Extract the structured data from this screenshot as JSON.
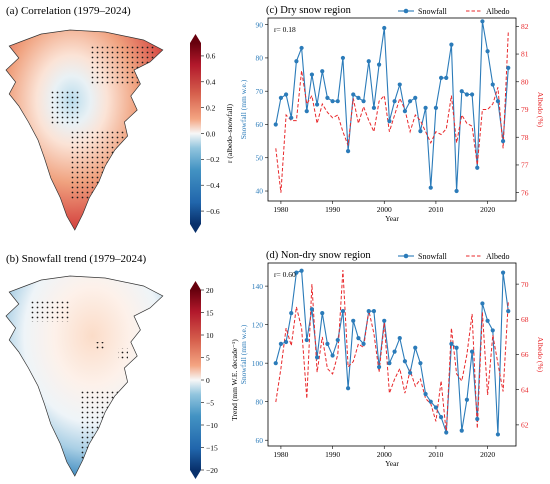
{
  "panels": {
    "a": {
      "title": "(a) Correlation (1979–2024)",
      "colorbar": {
        "label": "r (albedo–snowfall)",
        "min": -0.7,
        "max": 0.7,
        "ticks": [
          {
            "v": 0.6,
            "t": "0.6"
          },
          {
            "v": 0.4,
            "t": "0.4"
          },
          {
            "v": 0.2,
            "t": "0.2"
          },
          {
            "v": 0.0,
            "t": "0.0"
          },
          {
            "v": -0.2,
            "t": "−0.2"
          },
          {
            "v": -0.4,
            "t": "−0.4"
          },
          {
            "v": -0.6,
            "t": "−0.6"
          }
        ]
      }
    },
    "b": {
      "title": "(b) Snowfall trend (1979–2024)",
      "colorbar": {
        "label": "Trend (mm W.E. decade⁻¹)",
        "min": -20,
        "max": 20,
        "ticks": [
          {
            "v": 20,
            "t": "20"
          },
          {
            "v": 15,
            "t": "15"
          },
          {
            "v": 10,
            "t": "10"
          },
          {
            "v": 5,
            "t": "5"
          },
          {
            "v": 0,
            "t": "0"
          },
          {
            "v": -5,
            "t": "−5"
          },
          {
            "v": -10,
            "t": "−10"
          },
          {
            "v": -15,
            "t": "−15"
          },
          {
            "v": -20,
            "t": "−20"
          }
        ]
      }
    }
  },
  "colors": {
    "snowfall": "#2b7bb9",
    "albedo": "#e8282b",
    "cmap_neg": "#08306b",
    "cmap_pos": "#67000d",
    "land": "#ffffff"
  },
  "chart_data": [
    {
      "id": "c",
      "type": "line",
      "title": "(c) Dry snow region",
      "annotation": "r= 0.18",
      "xlabel": "Year",
      "ylabel": "Snowfall (mm w.e.)",
      "y2label": "Albedo (%)",
      "xlim": [
        1977.5,
        2025.5
      ],
      "ylim": [
        37,
        92
      ],
      "y2lim": [
        75.7,
        82.3
      ],
      "xticks": [
        1980,
        1990,
        2000,
        2010,
        2020
      ],
      "yticks": [
        40,
        50,
        60,
        70,
        80,
        90
      ],
      "y2ticks": [
        76,
        77,
        78,
        79,
        80,
        81,
        82
      ],
      "legend": "top-right",
      "x": [
        1979,
        1980,
        1981,
        1982,
        1983,
        1984,
        1985,
        1986,
        1987,
        1988,
        1989,
        1990,
        1991,
        1992,
        1993,
        1994,
        1995,
        1996,
        1997,
        1998,
        1999,
        2000,
        2001,
        2002,
        2003,
        2004,
        2005,
        2006,
        2007,
        2008,
        2009,
        2010,
        2011,
        2012,
        2013,
        2014,
        2015,
        2016,
        2017,
        2018,
        2019,
        2020,
        2021,
        2022,
        2023,
        2024
      ],
      "series": [
        {
          "name": "Snowfall",
          "axis": "left",
          "values": [
            60,
            68,
            69,
            62,
            79,
            83,
            64,
            75,
            66,
            76,
            68,
            67,
            67,
            80,
            52,
            69,
            68,
            67,
            79,
            65,
            78,
            89,
            61,
            67,
            72,
            64,
            67,
            68,
            58,
            65,
            41,
            65,
            74,
            74,
            84,
            40,
            70,
            69,
            69,
            47,
            91,
            82,
            72,
            67,
            55,
            77
          ]
        },
        {
          "name": "Albedo",
          "axis": "right",
          "values": [
            77.6,
            76.0,
            78.8,
            78.6,
            78.6,
            80.4,
            79.2,
            79.5,
            78.5,
            79.2,
            78.9,
            78.7,
            78.8,
            78.2,
            77.7,
            79.4,
            78.5,
            79.1,
            78.6,
            78.2,
            79.3,
            79.5,
            78.2,
            78.8,
            79.4,
            79.0,
            78.2,
            78.8,
            78.6,
            78.2,
            77.8,
            78.2,
            78.1,
            78.3,
            79.5,
            77.8,
            78.8,
            78.5,
            78.4,
            77.0,
            79.0,
            79.0,
            79.2,
            79.8,
            77.6,
            81.8
          ]
        }
      ]
    },
    {
      "id": "d",
      "type": "line",
      "title": "(d) Non-dry snow region",
      "annotation": "r= 0.60",
      "xlabel": "Year",
      "ylabel": "Snowfall (mm w.e.)",
      "y2label": "Albedo (%)",
      "xlim": [
        1977.5,
        2025.5
      ],
      "ylim": [
        57,
        152
      ],
      "y2lim": [
        60.8,
        71.2
      ],
      "xticks": [
        1980,
        1990,
        2000,
        2010,
        2020
      ],
      "yticks": [
        60,
        80,
        100,
        120,
        140
      ],
      "y2ticks": [
        62,
        64,
        66,
        68,
        70
      ],
      "legend": "top-right",
      "x": [
        1979,
        1980,
        1981,
        1982,
        1983,
        1984,
        1985,
        1986,
        1987,
        1988,
        1989,
        1990,
        1991,
        1992,
        1993,
        1994,
        1995,
        1996,
        1997,
        1998,
        1999,
        2000,
        2001,
        2002,
        2003,
        2004,
        2005,
        2006,
        2007,
        2008,
        2009,
        2010,
        2011,
        2012,
        2013,
        2014,
        2015,
        2016,
        2017,
        2018,
        2019,
        2020,
        2021,
        2022,
        2023,
        2024
      ],
      "series": [
        {
          "name": "Snowfall",
          "axis": "left",
          "values": [
            100,
            110,
            111,
            126,
            147,
            148,
            112,
            128,
            103,
            126,
            110,
            104,
            112,
            127,
            87,
            122,
            113,
            110,
            127,
            127,
            98,
            122,
            100,
            106,
            113,
            101,
            95,
            108,
            100,
            84,
            80,
            77,
            72,
            64,
            110,
            108,
            65,
            81,
            106,
            71,
            131,
            122,
            117,
            63,
            147,
            127
          ]
        },
        {
          "name": "Albedo",
          "axis": "right",
          "values": [
            63.3,
            65.2,
            67.5,
            66.5,
            68.7,
            67.5,
            63.5,
            70.0,
            65.0,
            67.0,
            65.2,
            64.9,
            66.0,
            70.8,
            65.3,
            65.6,
            66.6,
            66.4,
            68.5,
            67.2,
            65.0,
            67.8,
            63.8,
            64.6,
            65.2,
            63.8,
            65.1,
            64.2,
            64.6,
            63.5,
            63.2,
            62.2,
            64.5,
            61.5,
            67.5,
            64.9,
            64.5,
            66.0,
            68.3,
            61.8,
            68.4,
            63.7,
            67.1,
            65.5,
            63.9,
            69.0
          ]
        }
      ]
    }
  ]
}
